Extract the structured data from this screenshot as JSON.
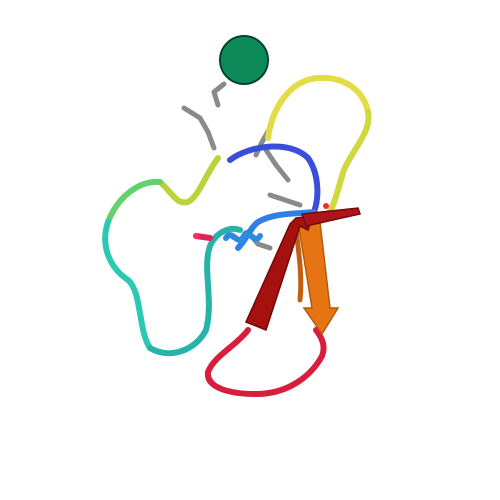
{
  "scene": {
    "background": "#ffffff",
    "subject": "protein-cartoon",
    "ligand_color": "#0c8a5a",
    "sidechain_color": "#8a8a8a",
    "rainbow": [
      "#2e55d6",
      "#2f6fe0",
      "#2aa6c8",
      "#25c7b0",
      "#55d86a",
      "#b6e04a",
      "#e6e24a",
      "#e9c54a",
      "#e8a02c",
      "#e0711b",
      "#c8232c",
      "#9e0f12"
    ]
  }
}
